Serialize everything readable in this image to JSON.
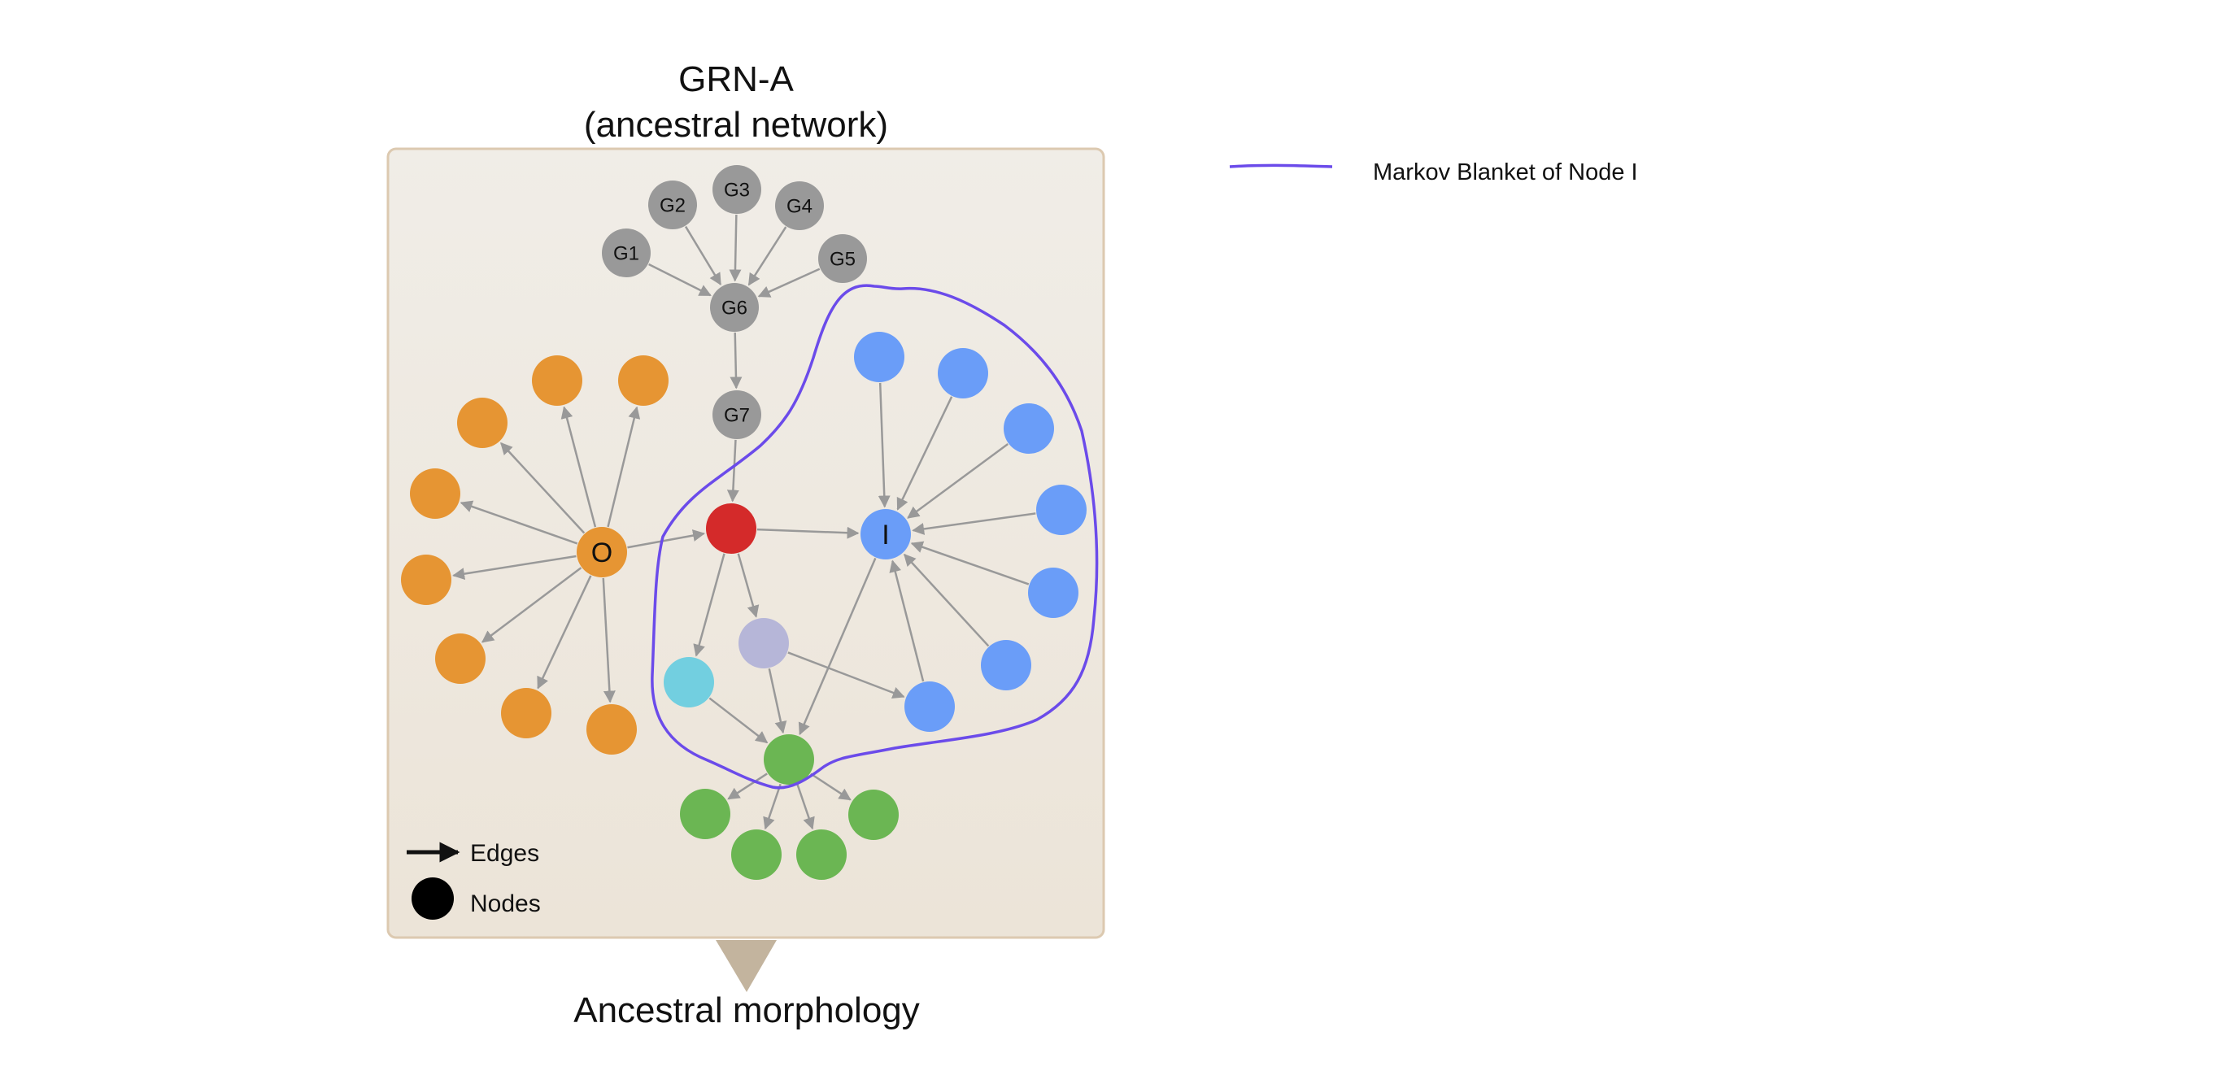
{
  "title_line1": "GRN-A",
  "title_line2": "(ancestral network)",
  "caption": "Ancestral morphology",
  "legend": {
    "edges_label": "Edges",
    "nodes_label": "Nodes",
    "markov_label": "Markov Blanket of Node I"
  },
  "node_labels": {
    "g1": "G1",
    "g2": "G2",
    "g3": "G3",
    "g4": "G4",
    "g5": "G5",
    "g6": "G6",
    "g7": "G7",
    "o": "O",
    "i": "I"
  },
  "colors": {
    "panel_fill": "#efebe4",
    "panel_border": "#dcc9b0",
    "pointer": "#c3b49e",
    "gray_node": "#999999",
    "orange_node": "#e69533",
    "red_node": "#d42a2a",
    "blue_node": "#6a9df8",
    "lavender_node": "#b6b6d8",
    "cyan_node": "#72cfe0",
    "green_node": "#6bb653",
    "edge": "#999999",
    "blanket": "#6b4bea"
  }
}
